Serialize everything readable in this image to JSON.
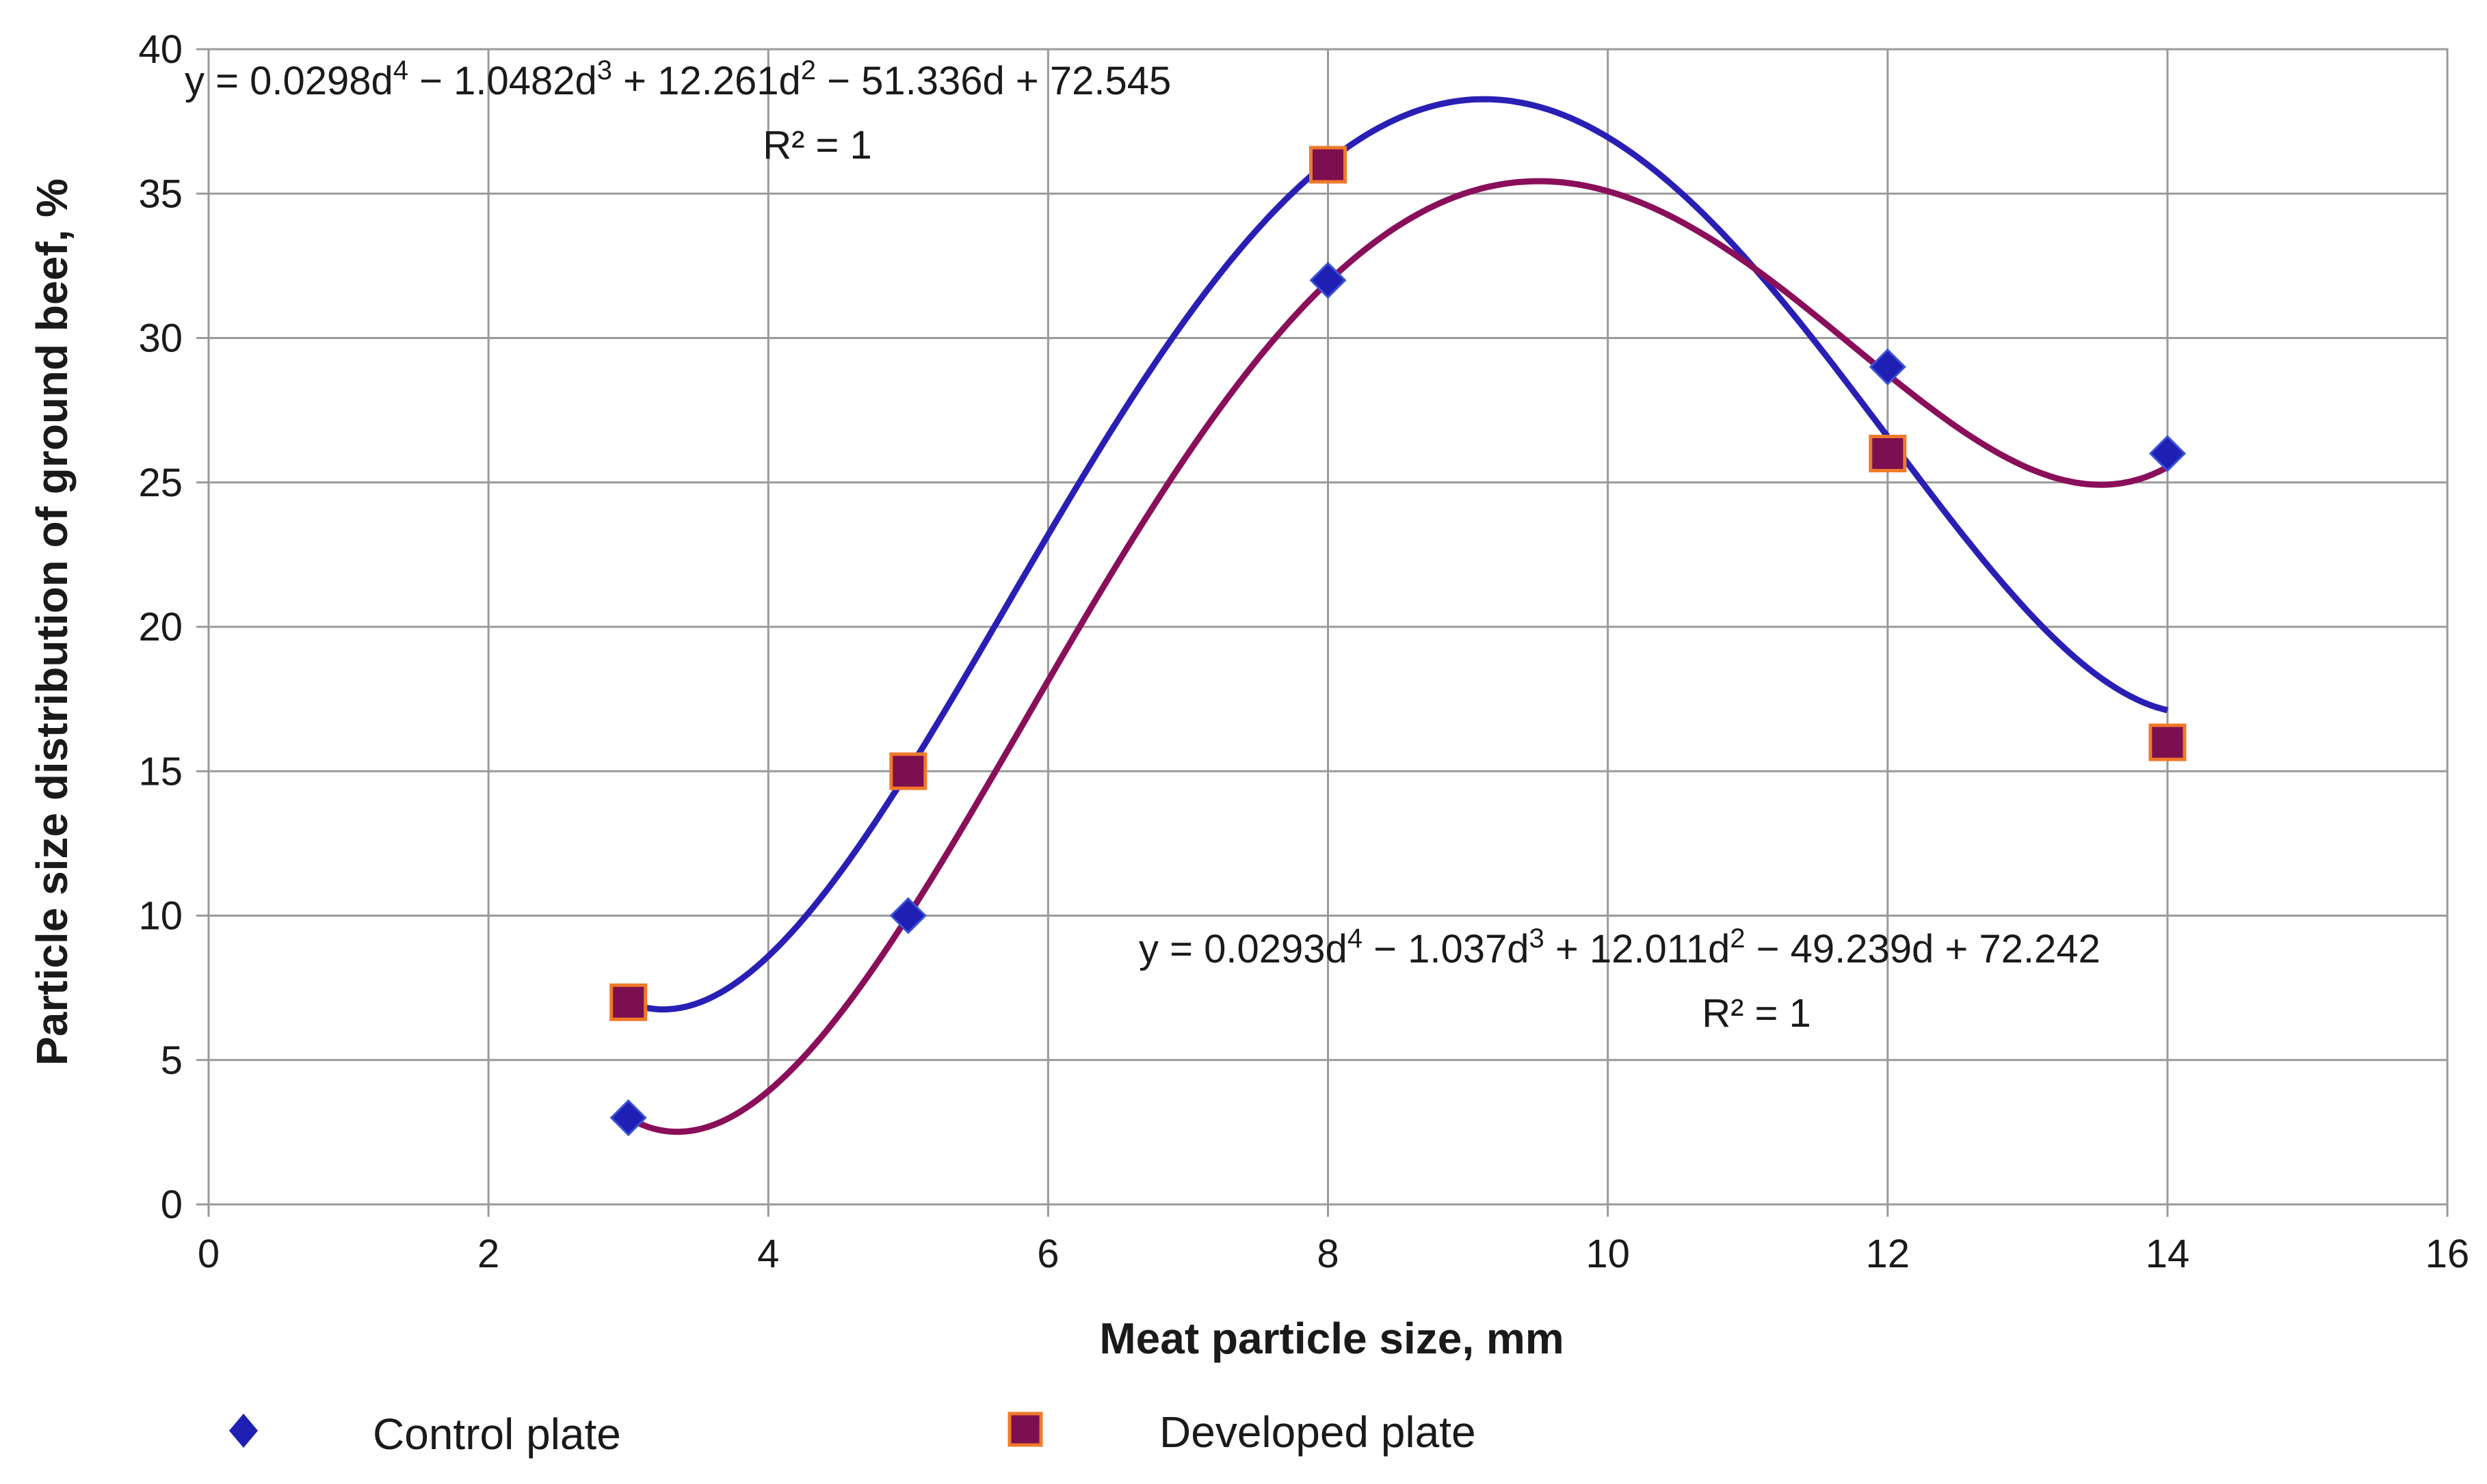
{
  "chart_data": {
    "type": "scatter",
    "xlabel": "Meat particle size, mm",
    "ylabel": "Particle size distribution of ground beef, %",
    "xlim": [
      0,
      16
    ],
    "ylim": [
      0,
      40
    ],
    "xticks": [
      0,
      2,
      4,
      6,
      8,
      10,
      12,
      14,
      16
    ],
    "yticks": [
      0,
      5,
      10,
      15,
      20,
      25,
      30,
      35,
      40
    ],
    "grid": true,
    "legend_position": "bottom",
    "series": [
      {
        "name": "Control plate",
        "marker": "diamond",
        "color": "#1f1fb4",
        "line_color": "#2a1fb5",
        "x": [
          3,
          5,
          8,
          12,
          14
        ],
        "y": [
          3,
          10,
          32,
          29,
          26
        ],
        "trendline": {
          "type": "polynomial",
          "coefficients": [
            0.0293,
            -1.037,
            12.011,
            -49.239,
            72.242
          ],
          "eq_parts": [
            "y = 0.0293d",
            "4",
            " − 1.037d",
            "3",
            " + 12.011d",
            "2",
            " − 49.239d + 72.242"
          ],
          "r2": "R² = 1"
        }
      },
      {
        "name": "Developed plate",
        "marker": "square",
        "color": "#7b0f4f",
        "edge_color": "#f07a2a",
        "line_color": "#8a0f5a",
        "x": [
          3,
          5,
          8,
          12,
          14
        ],
        "y": [
          7,
          15,
          36,
          26,
          16
        ],
        "trendline": {
          "type": "polynomial",
          "coefficients": [
            0.0298,
            -1.0482,
            12.261,
            -51.336,
            72.545
          ],
          "eq_parts": [
            "y = 0.0298d",
            "4",
            " − 1.0482d",
            "3",
            " + 12.261d",
            "2",
            " − 51.336d + 72.545"
          ],
          "r2": "R² = 1"
        }
      }
    ]
  }
}
